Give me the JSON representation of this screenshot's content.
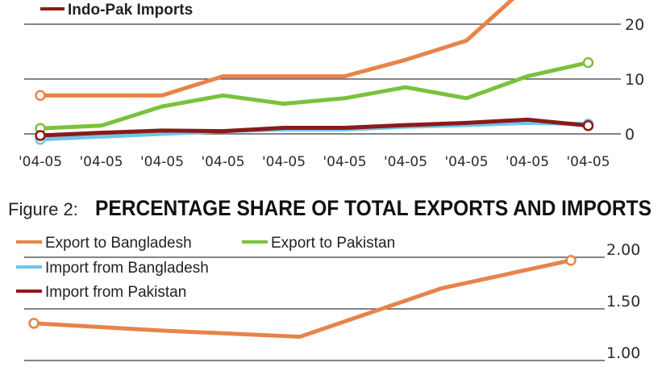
{
  "chart_data": [
    {
      "type": "line",
      "title": "",
      "legend_visible": [
        "Indo-Pak Imports"
      ],
      "x": [
        "'04-05",
        "'04-05",
        "'04-05",
        "'04-05",
        "'04-05",
        "'04-05",
        "'04-05",
        "'04-05",
        "'04-05",
        "'04-05"
      ],
      "yticks": [
        "20",
        "10",
        "0"
      ],
      "ylim": [
        0,
        20
      ],
      "grid": true,
      "series": [
        {
          "name": "",
          "color": "#e8834a",
          "values": [
            7,
            7,
            7,
            10.5,
            10.5,
            10.5,
            13.5,
            17,
            27,
            null
          ]
        },
        {
          "name": "",
          "color": "#7ac23c",
          "values": [
            1,
            1.5,
            5,
            7,
            5.5,
            6.5,
            8.5,
            6.5,
            10.5,
            13
          ]
        },
        {
          "name": "",
          "color": "#6fc6e6",
          "values": [
            -1,
            -0.5,
            0,
            0.5,
            0.8,
            0.8,
            1.3,
            1.6,
            2,
            1.8
          ]
        },
        {
          "name": "Indo-Pak Imports",
          "color": "#8b1a1a",
          "values": [
            -0.3,
            0.2,
            0.6,
            0.5,
            1.1,
            1.1,
            1.6,
            2,
            2.6,
            1.5
          ]
        }
      ]
    },
    {
      "type": "line",
      "figure_label": "Figure 2:",
      "title": "PERCENTAGE SHARE OF TOTAL EXPORTS AND IMPORTS",
      "yticks": [
        "2.00",
        "1.50",
        "1.00"
      ],
      "ylim": [
        1.0,
        2.0
      ],
      "grid": true,
      "series": [
        {
          "name": "Export to Bangladesh",
          "color": "#e8834a",
          "values": [
            1.36,
            1.29,
            1.23,
            1.7,
            1.97
          ]
        },
        {
          "name": "Export to Pakistan",
          "color": "#7ac23c",
          "values": []
        },
        {
          "name": "Import from Bangladesh",
          "color": "#6fc6e6",
          "values": []
        },
        {
          "name": "Import from Pakistan",
          "color": "#8b1a1a",
          "values": []
        }
      ]
    }
  ]
}
